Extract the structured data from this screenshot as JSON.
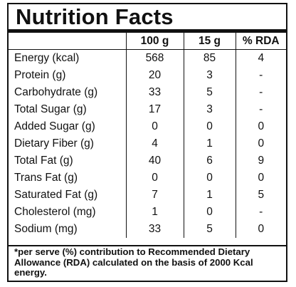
{
  "title": "Nutrition Facts",
  "columns": [
    "",
    "100 g",
    "15 g",
    "% RDA"
  ],
  "rows": [
    {
      "label": "Energy (kcal)",
      "per100": "568",
      "per15": "85",
      "rda": "4"
    },
    {
      "label": "Protein (g)",
      "per100": "20",
      "per15": "3",
      "rda": "-"
    },
    {
      "label": "Carbohydrate (g)",
      "per100": "33",
      "per15": "5",
      "rda": "-"
    },
    {
      "label": "Total Sugar (g)",
      "per100": "17",
      "per15": "3",
      "rda": "-"
    },
    {
      "label": "Added Sugar (g)",
      "per100": "0",
      "per15": "0",
      "rda": "0"
    },
    {
      "label": "Dietary Fiber (g)",
      "per100": "4",
      "per15": "1",
      "rda": "0"
    },
    {
      "label": "Total Fat (g)",
      "per100": "40",
      "per15": "6",
      "rda": "9"
    },
    {
      "label": "Trans Fat (g)",
      "per100": "0",
      "per15": "0",
      "rda": "0"
    },
    {
      "label": "Saturated Fat (g)",
      "per100": "7",
      "per15": "1",
      "rda": "5"
    },
    {
      "label": "Cholesterol (mg)",
      "per100": "1",
      "per15": "0",
      "rda": "-"
    },
    {
      "label": "Sodium (mg)",
      "per100": "33",
      "per15": "5",
      "rda": "0"
    }
  ],
  "footnote": "*per serve (%) contribution to Recommended Dietary Allowance (RDA) calculated on the basis of 2000 Kcal energy."
}
